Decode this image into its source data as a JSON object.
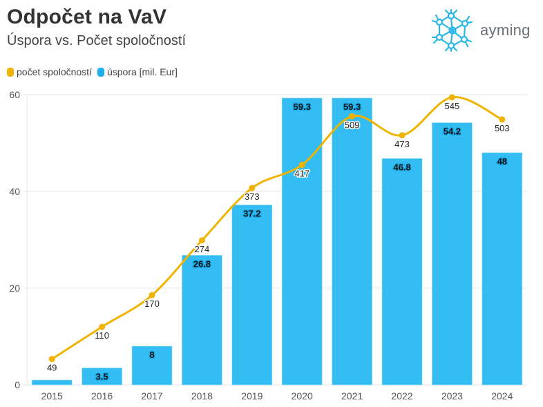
{
  "header": {
    "title": "Odpočet na VaV",
    "subtitle": "Úspora vs. Počet spoločností"
  },
  "logo": {
    "text": "ayming",
    "icon": "network-sphere-icon",
    "color": "#29b6e8"
  },
  "legend": [
    {
      "label": "počet spoločností",
      "color": "#f0b400"
    },
    {
      "label": "úspora [mil. Eur]",
      "color": "#1ab0ee"
    }
  ],
  "chart_data": {
    "type": "bar+line",
    "title": "Odpočet na VaV",
    "subtitle": "Úspora vs. Počet spoločností",
    "categories": [
      "2015",
      "2016",
      "2017",
      "2018",
      "2019",
      "2020",
      "2021",
      "2022",
      "2023",
      "2024"
    ],
    "series": [
      {
        "name": "úspora [mil. Eur]",
        "type": "bar",
        "axis": "primary",
        "color": "#33bdf2",
        "values": [
          1,
          3.5,
          8,
          26.8,
          37.2,
          59.3,
          59.3,
          46.8,
          54.2,
          48
        ],
        "labels": [
          "",
          "3.5",
          "8",
          "26.8",
          "37.2",
          "59.3",
          "59.3",
          "46.8",
          "54.2",
          "48"
        ]
      },
      {
        "name": "počet spoločností",
        "type": "line",
        "axis": "secondary-hidden",
        "color": "#f0b400",
        "smooth": true,
        "values": [
          49,
          110,
          170,
          274,
          373,
          417,
          509,
          473,
          545,
          503
        ],
        "labels": [
          "49",
          "110",
          "170",
          "274",
          "373",
          "417",
          "509",
          "473",
          "545",
          "503"
        ]
      }
    ],
    "y_axis": {
      "ticks": [
        "0",
        "20",
        "40",
        "60"
      ],
      "ylim": [
        0,
        60
      ]
    },
    "y2_axis": {
      "ylim": [
        0,
        550
      ],
      "visible": false
    },
    "grid": true,
    "legend_position": "top-left"
  }
}
